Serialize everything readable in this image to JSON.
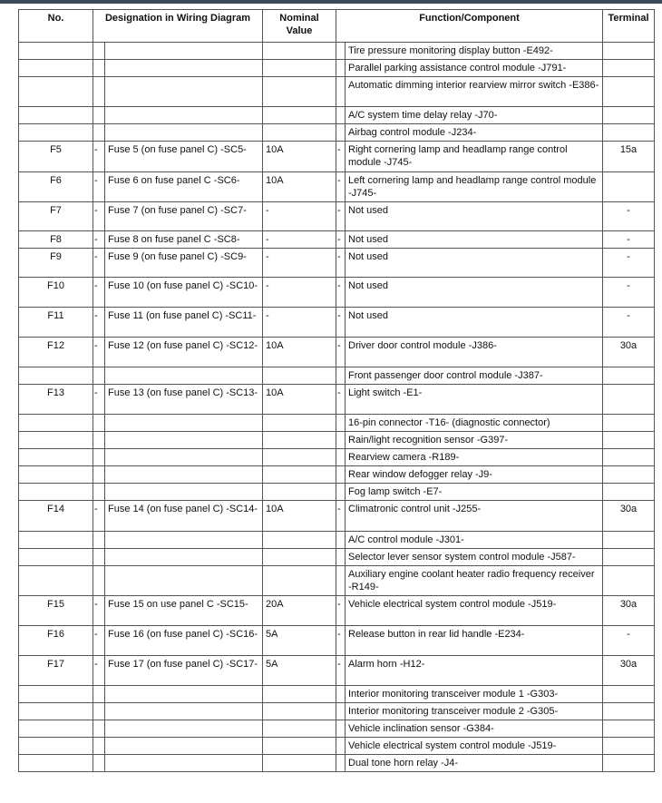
{
  "header": {
    "no": "No.",
    "designation": "Designation in Wiring Diagram",
    "nominal": "Nominal Value",
    "function": "Function/Component",
    "terminal": "Terminal"
  },
  "table": {
    "rows": [
      {
        "function": "Tire pressure monitoring display button -E492-"
      },
      {
        "function": "Parallel parking assistance control module -J791-"
      },
      {
        "function": "Automatic dimming interior rearview mirror switch -E386-"
      },
      {
        "function": "A/C system time delay relay -J70-"
      },
      {
        "function": "Airbag control module -J234-"
      },
      {
        "no": "F5",
        "s1": "-",
        "designation": "Fuse 5 (on fuse panel C) -SC5-",
        "nominal": "10A",
        "s2": "-",
        "function": "Right cornering lamp and headlamp range control module -J745-",
        "terminal": "15a"
      },
      {
        "no": "F6",
        "s1": "-",
        "designation": "Fuse 6 on fuse panel C -SC6-",
        "nominal": "10A",
        "s2": "-",
        "function": "Left cornering lamp and headlamp range control module -J745-"
      },
      {
        "no": "F7",
        "s1": "-",
        "designation": "Fuse 7 (on fuse panel C) -SC7-",
        "nominal": "-",
        "s2": "-",
        "function": "Not used",
        "terminal": "-"
      },
      {
        "no": "F8",
        "s1": "-",
        "designation": "Fuse 8 on fuse panel C -SC8-",
        "nominal": "-",
        "s2": "-",
        "function": "Not used",
        "terminal": "-"
      },
      {
        "no": "F9",
        "s1": "-",
        "designation": "Fuse 9 (on fuse panel C) -SC9-",
        "nominal": "-",
        "s2": "-",
        "function": "Not used",
        "terminal": "-"
      },
      {
        "no": "F10",
        "s1": "-",
        "designation": "Fuse 10 (on fuse panel C) -SC10-",
        "nominal": "-",
        "s2": "-",
        "function": "Not used",
        "terminal": "-"
      },
      {
        "no": "F11",
        "s1": "-",
        "designation": "Fuse 11 (on fuse panel C) -SC11-",
        "nominal": "-",
        "s2": "-",
        "function": "Not used",
        "terminal": "-"
      },
      {
        "no": "F12",
        "s1": "-",
        "designation": "Fuse 12 (on fuse panel C) -SC12-",
        "nominal": "10A",
        "s2": "-",
        "function": "Driver door control module -J386-",
        "terminal": "30a"
      },
      {
        "function": "Front passenger door control module -J387-"
      },
      {
        "no": "F13",
        "s1": "-",
        "designation": "Fuse 13 (on fuse panel C) -SC13-",
        "nominal": "10A",
        "s2": "-",
        "function": "Light switch -E1-"
      },
      {
        "function": "16-pin connector -T16- (diagnostic connector)"
      },
      {
        "function": "Rain/light recognition sensor -G397-"
      },
      {
        "function": "Rearview camera -R189-"
      },
      {
        "function": "Rear window defogger relay -J9-"
      },
      {
        "function": "Fog lamp switch -E7-"
      },
      {
        "no": "F14",
        "s1": "-",
        "designation": "Fuse 14 (on fuse panel C) -SC14-",
        "nominal": "10A",
        "s2": "-",
        "function": "Climatronic control unit -J255-",
        "terminal": "30a"
      },
      {
        "function": "A/C control module -J301-"
      },
      {
        "function": "Selector lever sensor system control module -J587-"
      },
      {
        "function": "Auxiliary engine coolant heater radio frequency receiver -R149-"
      },
      {
        "no": "F15",
        "s1": "-",
        "designation": "Fuse 15 on use panel C -SC15-",
        "nominal": "20A",
        "s2": "-",
        "function": "Vehicle electrical system control module -J519-",
        "terminal": "30a"
      },
      {
        "no": "F16",
        "s1": "-",
        "designation": "Fuse 16 (on fuse panel C) -SC16-",
        "nominal": "5A",
        "s2": "-",
        "function": "Release button in rear lid handle -E234-",
        "terminal": "-"
      },
      {
        "no": "F17",
        "s1": "-",
        "designation": "Fuse 17 (on fuse panel C) -SC17-",
        "nominal": "5A",
        "s2": "-",
        "function": "Alarm horn -H12-",
        "terminal": "30a"
      },
      {
        "function": "Interior monitoring transceiver module 1 -G303-"
      },
      {
        "function": "Interior monitoring transceiver module 2 -G305-"
      },
      {
        "function": "Vehicle inclination sensor -G384-"
      },
      {
        "function": "Vehicle electrical system control module -J519-"
      },
      {
        "function": "Dual tone horn relay -J4-"
      }
    ]
  }
}
